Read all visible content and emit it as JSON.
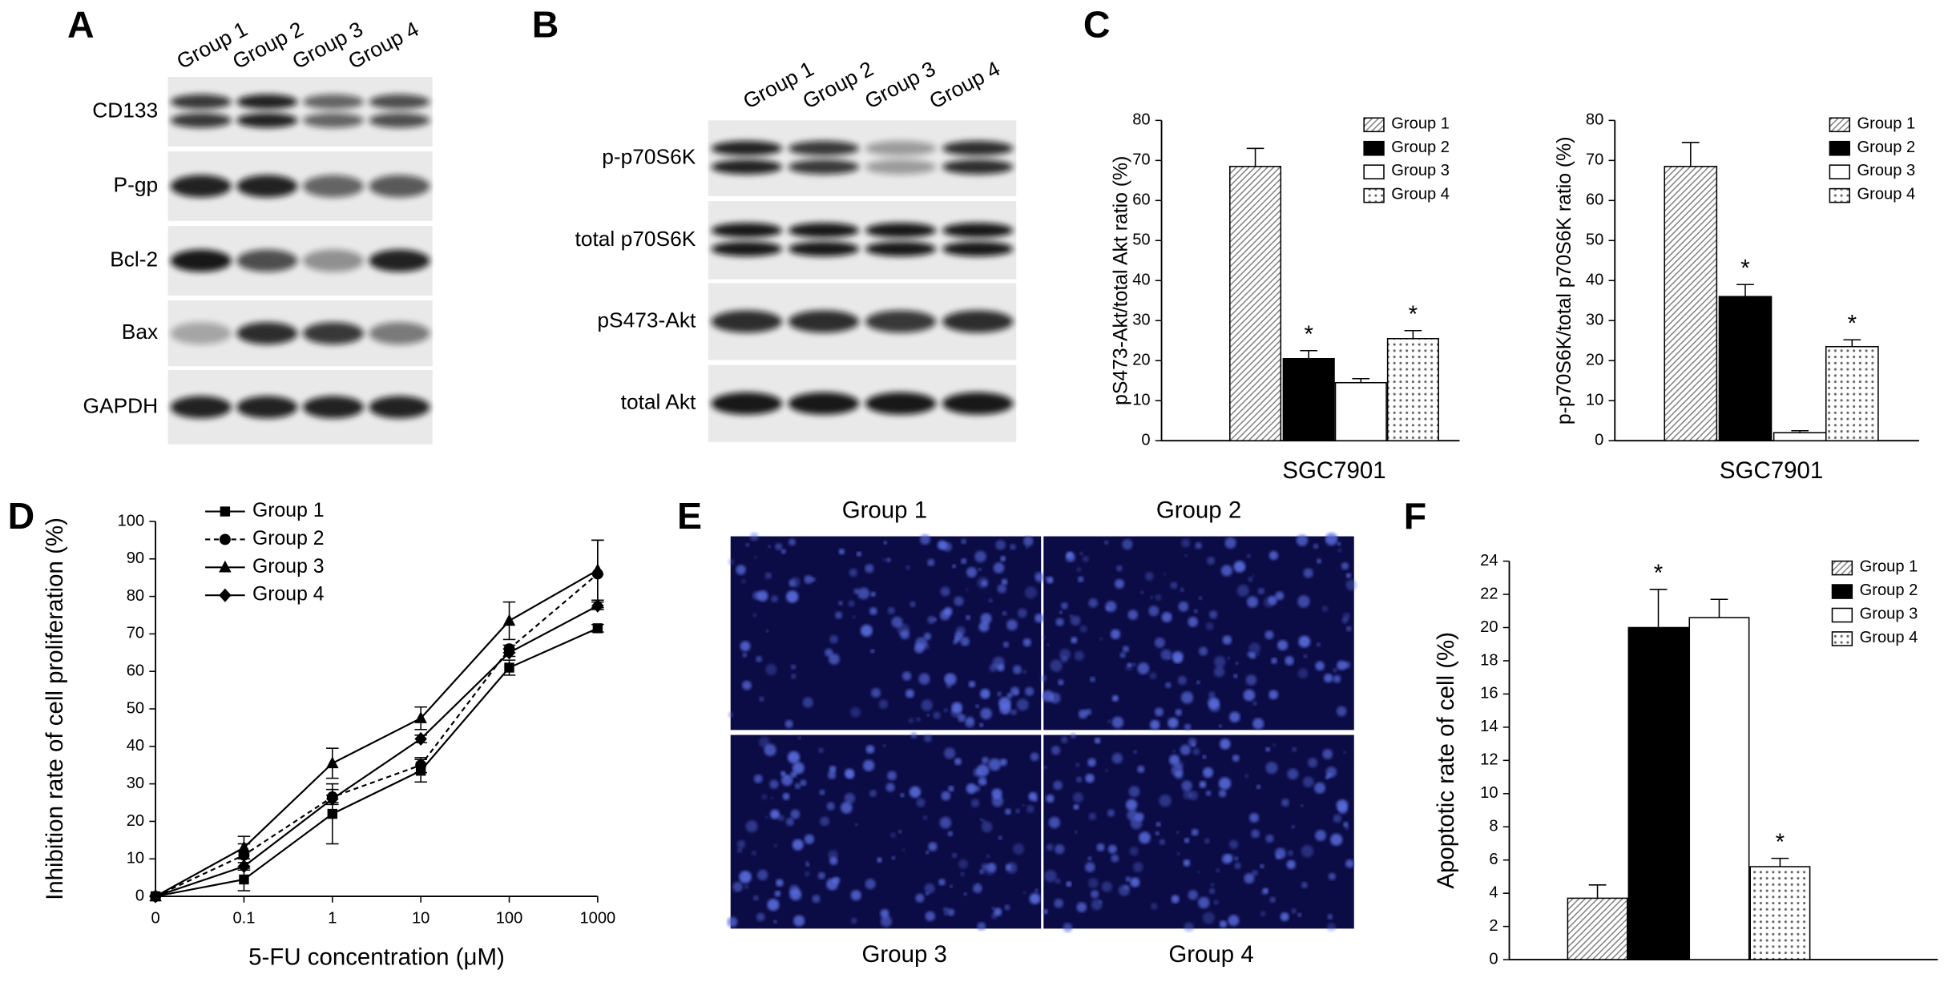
{
  "panel_letters": [
    "A",
    "B",
    "C",
    "D",
    "E",
    "F"
  ],
  "blots": [
    {
      "columns": [
        "Group 1",
        "Group 2",
        "Group 3",
        "Group 4"
      ],
      "rows": [
        "CD133",
        "P-gp",
        "Bcl-2",
        "Bax",
        "GAPDH"
      ]
    },
    {
      "columns": [
        "Group 1",
        "Group 2",
        "Group 3",
        "Group 4"
      ],
      "rows": [
        "p-p70S6K",
        "total p70S6K",
        "pS473-Akt",
        "total Akt"
      ]
    }
  ],
  "micrographs": {
    "labels": [
      "Group 1",
      "Group 2",
      "Group 3",
      "Group 4"
    ]
  },
  "chart_data": [
    {
      "type": "bar",
      "y_label": "pS473-Akt/total Akt ratio (%)",
      "categories": [
        "SGC7901"
      ],
      "ylim": [
        0,
        80
      ],
      "yticks": [
        0,
        10,
        20,
        30,
        40,
        50,
        60,
        70,
        80
      ],
      "legend": "upper right",
      "series": [
        {
          "name": "Group 1",
          "color": "#ffffff",
          "pattern": "hatch",
          "values": [
            68.5
          ],
          "errors": [
            4.5
          ]
        },
        {
          "name": "Group 2",
          "color": "#000000",
          "pattern": "solid",
          "values": [
            20.5
          ],
          "errors": [
            2
          ]
        },
        {
          "name": "Group 3",
          "color": "#ffffff",
          "pattern": "solid",
          "values": [
            14.5
          ],
          "errors": [
            1
          ]
        },
        {
          "name": "Group 4",
          "color": "#ffffff",
          "pattern": "dots",
          "values": [
            25.5
          ],
          "errors": [
            2
          ]
        }
      ],
      "annotations": [
        {
          "text": "*",
          "series": "Group 2"
        },
        {
          "text": "*",
          "series": "Group 4"
        }
      ]
    },
    {
      "type": "bar",
      "y_label": "p-p70S6K/total p70S6K ratio (%)",
      "categories": [
        "SGC7901"
      ],
      "ylim": [
        0,
        80
      ],
      "yticks": [
        0,
        10,
        20,
        30,
        40,
        50,
        60,
        70,
        80
      ],
      "legend": "upper right",
      "series": [
        {
          "name": "Group 1",
          "color": "#ffffff",
          "pattern": "hatch",
          "values": [
            68.5
          ],
          "errors": [
            6
          ]
        },
        {
          "name": "Group 2",
          "color": "#000000",
          "pattern": "solid",
          "values": [
            36
          ],
          "errors": [
            3
          ]
        },
        {
          "name": "Group 3",
          "color": "#ffffff",
          "pattern": "solid",
          "values": [
            2
          ],
          "errors": [
            0.5
          ]
        },
        {
          "name": "Group 4",
          "color": "#ffffff",
          "pattern": "dots",
          "values": [
            23.5
          ],
          "errors": [
            1.7
          ]
        }
      ],
      "annotations": [
        {
          "text": "*",
          "series": "Group 2"
        },
        {
          "text": "*",
          "series": "Group 4"
        }
      ]
    },
    {
      "type": "line",
      "y_label": "Inhibition rate of cell proliferation (%)",
      "x_label": "5-FU concentration (μM)",
      "categories": [
        "0",
        "0.1",
        "1",
        "10",
        "100",
        "1000"
      ],
      "ylim": [
        0,
        100
      ],
      "yticks": [
        0,
        10,
        20,
        30,
        40,
        50,
        60,
        70,
        80,
        90,
        100
      ],
      "legend": "upper left",
      "series": [
        {
          "name": "Group 1",
          "color": "#000000",
          "marker": "square",
          "dashed": false,
          "values": [
            0,
            4.5,
            22,
            33.5,
            61,
            71.5
          ],
          "errors": [
            0,
            3,
            8,
            3,
            2,
            1
          ]
        },
        {
          "name": "Group 2",
          "color": "#000000",
          "marker": "circle",
          "dashed": true,
          "values": [
            0,
            11,
            26.5,
            35,
            66,
            86
          ],
          "errors": [
            0,
            3,
            2,
            2,
            1,
            9
          ]
        },
        {
          "name": "Group 3",
          "color": "#000000",
          "marker": "triangle",
          "dashed": false,
          "values": [
            0,
            13,
            35.5,
            47.5,
            73.5,
            87
          ],
          "errors": [
            0,
            3,
            4,
            3,
            5,
            8
          ]
        },
        {
          "name": "Group 4",
          "color": "#000000",
          "marker": "diamond",
          "dashed": false,
          "values": [
            0,
            8,
            26,
            42,
            65,
            77.5
          ],
          "errors": [
            0,
            1,
            1,
            1,
            1,
            1
          ]
        }
      ]
    },
    {
      "type": "bar",
      "y_label": "Apoptotic rate of cell (%)",
      "ylim": [
        0,
        24
      ],
      "yticks": [
        0,
        2,
        4,
        6,
        8,
        10,
        12,
        14,
        16,
        18,
        20,
        22,
        24
      ],
      "legend": "upper right",
      "series": [
        {
          "name": "Group 1",
          "color": "#ffffff",
          "pattern": "hatch",
          "values": [
            3.7
          ],
          "errors": [
            0.8
          ]
        },
        {
          "name": "Group 2",
          "color": "#000000",
          "pattern": "solid",
          "values": [
            20
          ],
          "errors": [
            2.3
          ]
        },
        {
          "name": "Group 3",
          "color": "#ffffff",
          "pattern": "solid",
          "values": [
            20.6
          ],
          "errors": [
            1.1
          ]
        },
        {
          "name": "Group 4",
          "color": "#ffffff",
          "pattern": "dots",
          "values": [
            5.6
          ],
          "errors": [
            0.5
          ]
        }
      ],
      "annotations": [
        {
          "text": "*",
          "series": "Group 2"
        },
        {
          "text": "*",
          "series": "Group 4"
        }
      ]
    }
  ]
}
